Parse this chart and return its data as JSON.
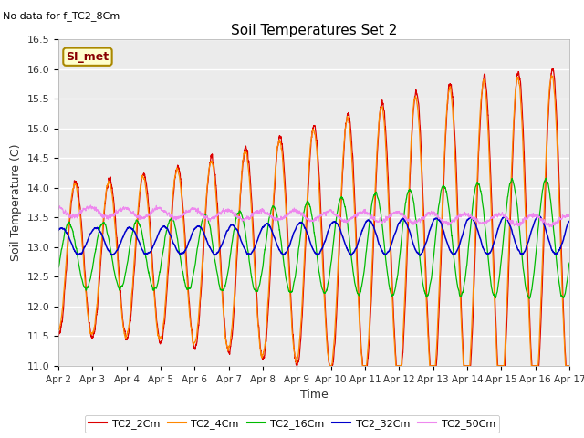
{
  "title": "Soil Temperatures Set 2",
  "subtitle": "No data for f_TC2_8Cm",
  "xlabel": "Time",
  "ylabel": "Soil Temperature (C)",
  "ylim": [
    11.0,
    16.5
  ],
  "bg_color": "#ffffff",
  "plot_bg": "#ebebeb",
  "legend_label": "SI_met",
  "series_colors": {
    "TC2_2Cm": "#dd0000",
    "TC2_4Cm": "#ff8800",
    "TC2_16Cm": "#00bb00",
    "TC2_32Cm": "#0000cc",
    "TC2_50Cm": "#ee88ee"
  },
  "xtick_labels": [
    "Apr 2",
    "Apr 3",
    "Apr 4",
    "Apr 5",
    "Apr 6",
    "Apr 7",
    "Apr 8",
    "Apr 9",
    "Apr 10",
    "Apr 11",
    "Apr 12",
    "Apr 13",
    "Apr 14",
    "Apr 15",
    "Apr 16",
    "Apr 17"
  ],
  "ytick_values": [
    11.0,
    11.5,
    12.0,
    12.5,
    13.0,
    13.5,
    14.0,
    14.5,
    15.0,
    15.5,
    16.0,
    16.5
  ]
}
